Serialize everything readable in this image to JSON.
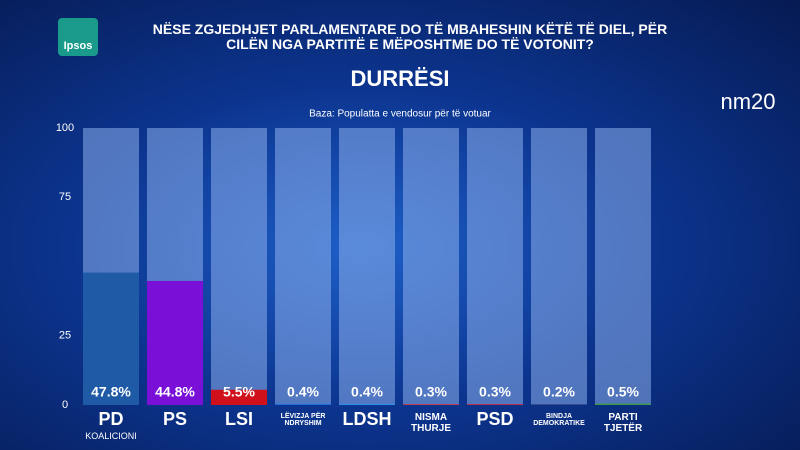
{
  "logo": "Ipsos",
  "channel": "nm20",
  "chart_data": {
    "type": "bar",
    "title": "NËSE ZGJEDHJET PARLAMENTARE DO TË MBAHESHIN KËTË TË DIEL, PËR CILËN NGA PARTITË E MËPOSHTME DO TË VOTONIT?",
    "subtitle": "DURRËSI",
    "note": "Baza: Populatta e vendosur për të votuar",
    "categories": [
      "PD",
      "PS",
      "LSI",
      "LËVIZJA PËR NDRYSHIM",
      "LDSH",
      "NISMA THURJE",
      "PSD",
      "BINDJA DEMOKRATIKE",
      "PARTI TJETËR"
    ],
    "category_notes": [
      "KOALICIONI",
      null,
      null,
      null,
      null,
      null,
      null,
      null,
      null
    ],
    "values": [
      47.8,
      44.8,
      5.5,
      0.4,
      0.4,
      0.3,
      0.3,
      0.2,
      0.5
    ],
    "value_labels": [
      "47.8%",
      "44.8%",
      "5.5%",
      "0.4%",
      "0.4%",
      "0.3%",
      "0.3%",
      "0.2%",
      "0.5%"
    ],
    "colors": [
      "#1f5aa6",
      "#7a10d8",
      "#d0101a",
      "#1e6fd9",
      "#2a8fe8",
      "#d3343c",
      "#cc2030",
      "#1b2f6e",
      "#3a9a4a"
    ],
    "ylim": [
      0,
      100
    ],
    "yticks": [
      0,
      25,
      75,
      100
    ]
  }
}
